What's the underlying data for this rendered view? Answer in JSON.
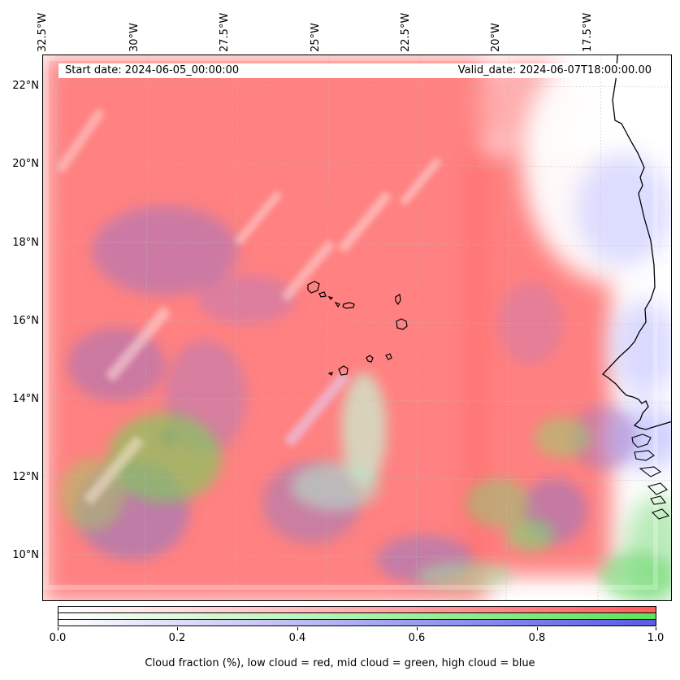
{
  "map": {
    "start_date": "Start date: 2024-06-05_00:00:00",
    "valid_date": "Valid_date: 2024-06-07T18:00:00.00",
    "longitude_labels": [
      "32.5°W",
      "30°W",
      "27.5°W",
      "25°W",
      "22.5°W",
      "20°W",
      "17.5°W"
    ],
    "latitude_labels": [
      "22°N",
      "20°N",
      "18°N",
      "16°N",
      "14°N",
      "12°N",
      "10°N"
    ],
    "layers": {
      "low_cloud_color": "#ff6f6f",
      "mid_cloud_color": "#6fe36f",
      "high_cloud_color": "#6f6fe0"
    }
  },
  "colorbar": {
    "ticks": [
      "0.0",
      "0.2",
      "0.4",
      "0.6",
      "0.8",
      "1.0"
    ],
    "label": "Cloud fraction (%), low cloud = red, mid cloud = green, high cloud = blue",
    "bars": [
      {
        "name": "low",
        "from": "#ffffff",
        "to": "#ff5c5c"
      },
      {
        "name": "mid",
        "from": "#ffffff",
        "to": "#59e659"
      },
      {
        "name": "high",
        "from": "#ffffff",
        "to": "#5a5ae6"
      }
    ]
  }
}
